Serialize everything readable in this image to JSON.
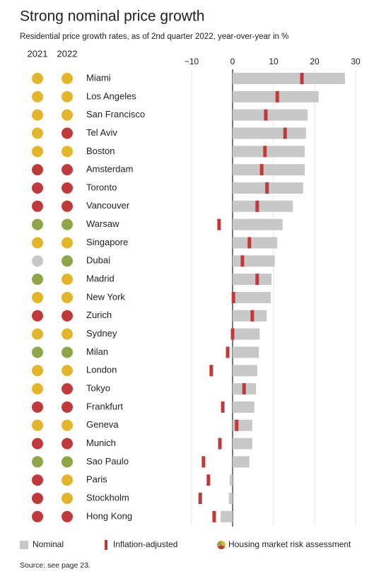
{
  "chart_data": {
    "type": "bar",
    "title": "Strong nominal price growth",
    "subtitle": "Residential price growth rates, as of 2nd quarter 2022, year-over-year in %",
    "categories": [
      "Miami",
      "Los Angeles",
      "San Francisco",
      "Tel Aviv",
      "Boston",
      "Amsterdam",
      "Toronto",
      "Vancouver",
      "Warsaw",
      "Singapore",
      "Dubai",
      "Madrid",
      "New York",
      "Zurich",
      "Sydney",
      "Milan",
      "London",
      "Tokyo",
      "Frankfurt",
      "Geneva",
      "Munich",
      "Sao Paulo",
      "Paris",
      "Stockholm",
      "Hong Kong"
    ],
    "series": [
      {
        "name": "Nominal",
        "color": "#c8c8c8",
        "values": [
          27.4,
          21,
          18.3,
          17.9,
          17.6,
          17.6,
          17.2,
          14.7,
          12.2,
          10.9,
          10.3,
          9.5,
          9.3,
          8.3,
          6.6,
          6.4,
          6,
          5.7,
          5.3,
          4.8,
          4.8,
          4.1,
          -0.7,
          -0.9,
          -2.9
        ]
      },
      {
        "name": "Inflation-adjusted",
        "color": "#c0393b",
        "values": [
          16.9,
          10.9,
          8.1,
          12.8,
          7.9,
          7.1,
          8.4,
          6,
          -3.3,
          4.1,
          2.4,
          6,
          0.2,
          4.8,
          0,
          -1.2,
          -5.2,
          2.8,
          -2.4,
          1,
          -3.1,
          -7.1,
          -5.9,
          -7.9,
          -4.5
        ]
      }
    ],
    "risk_legend": "Housing market risk assessment",
    "risk": [
      {
        "name": "2021",
        "colors": [
          "#e3b52b",
          "#e3b52b",
          "#e3b52b",
          "#e3b52b",
          "#e3b52b",
          "#c0393b",
          "#c0393b",
          "#c0393b",
          "#8ea548",
          "#e3b52b",
          "#c8c8c8",
          "#8ea548",
          "#e3b52b",
          "#c0393b",
          "#e3b52b",
          "#8ea548",
          "#e3b52b",
          "#e3b52b",
          "#c0393b",
          "#e3b52b",
          "#c0393b",
          "#8ea548",
          "#c0393b",
          "#c0393b",
          "#c0393b"
        ]
      },
      {
        "name": "2022",
        "colors": [
          "#e3b52b",
          "#e3b52b",
          "#e3b52b",
          "#c0393b",
          "#e3b52b",
          "#c0393b",
          "#c0393b",
          "#c0393b",
          "#8ea548",
          "#e3b52b",
          "#8ea548",
          "#e3b52b",
          "#e3b52b",
          "#c0393b",
          "#e3b52b",
          "#8ea548",
          "#e3b52b",
          "#c0393b",
          "#c0393b",
          "#e3b52b",
          "#c0393b",
          "#8ea548",
          "#e3b52b",
          "#e3b52b",
          "#c0393b"
        ]
      }
    ],
    "xlim": [
      -12,
      32
    ],
    "xticks": [
      {
        "value": -10,
        "label": "−10"
      },
      0,
      10,
      20,
      30
    ],
    "grid": true,
    "source": "Source: see page 23."
  }
}
